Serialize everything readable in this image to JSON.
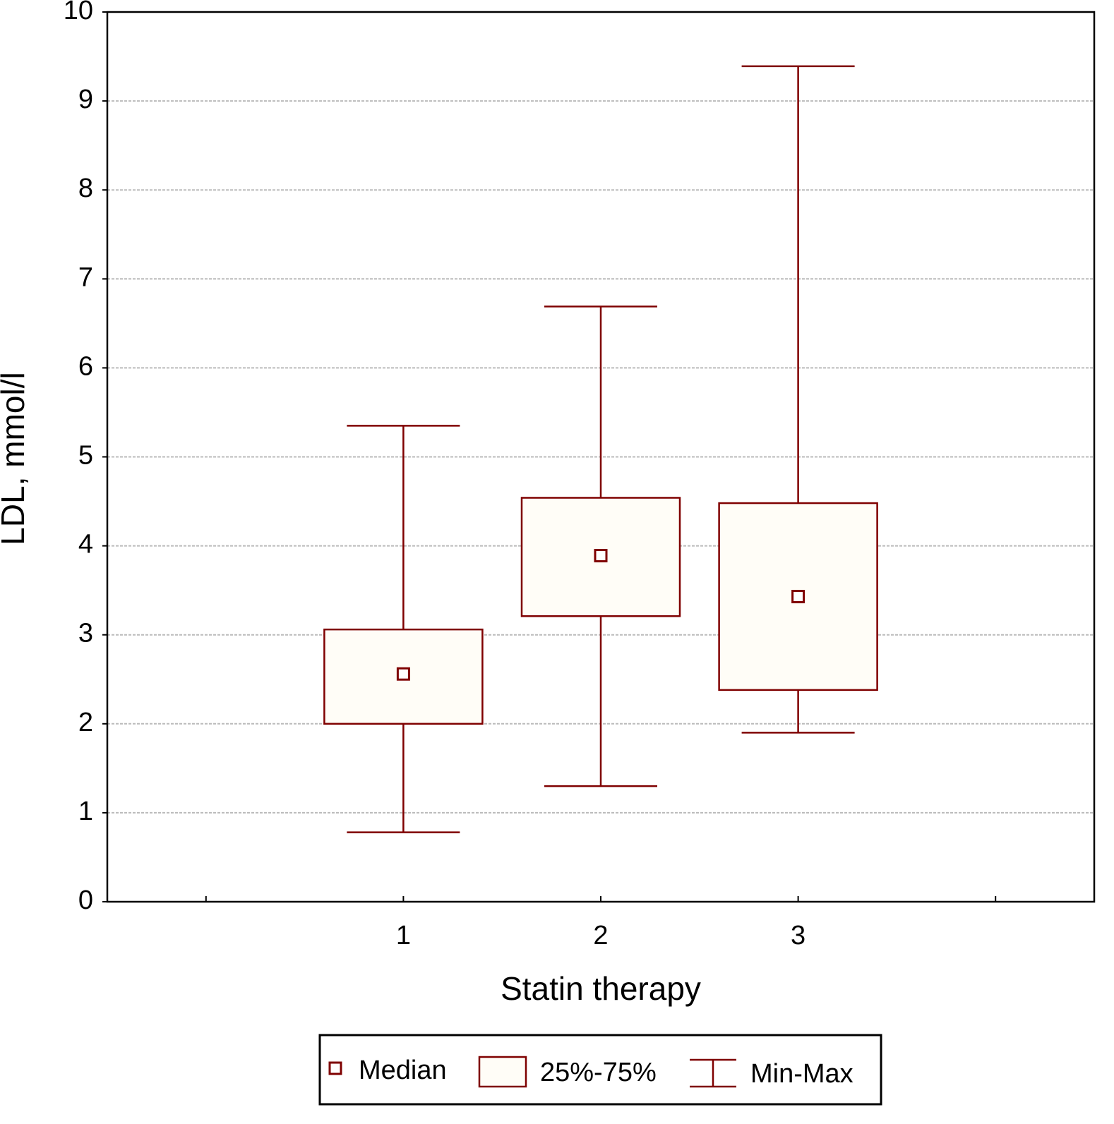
{
  "chart_data": {
    "type": "box",
    "x_label": "Statin therapy",
    "y_label": "LDL, mmol/l",
    "categories": [
      null,
      "1",
      "2",
      "3",
      null
    ],
    "series": [
      {
        "name": "LDL",
        "color": "#7f0000",
        "min": [
          null,
          0.78,
          1.3,
          1.9,
          null
        ],
        "q1": [
          null,
          2.0,
          3.21,
          2.38,
          null
        ],
        "median": [
          null,
          2.56,
          3.89,
          3.43,
          null
        ],
        "q3": [
          null,
          3.06,
          4.54,
          4.48,
          null
        ],
        "max": [
          null,
          5.35,
          6.69,
          9.39,
          null
        ]
      }
    ],
    "ylim": [
      0,
      10
    ],
    "yticks": [
      0,
      1,
      2,
      3,
      4,
      5,
      6,
      7,
      8,
      9,
      10
    ],
    "grid": true,
    "box_fill": "#fffdf7",
    "legend": {
      "position": "bottom",
      "items": [
        "Median",
        "25%-75%",
        "Min-Max"
      ]
    }
  }
}
